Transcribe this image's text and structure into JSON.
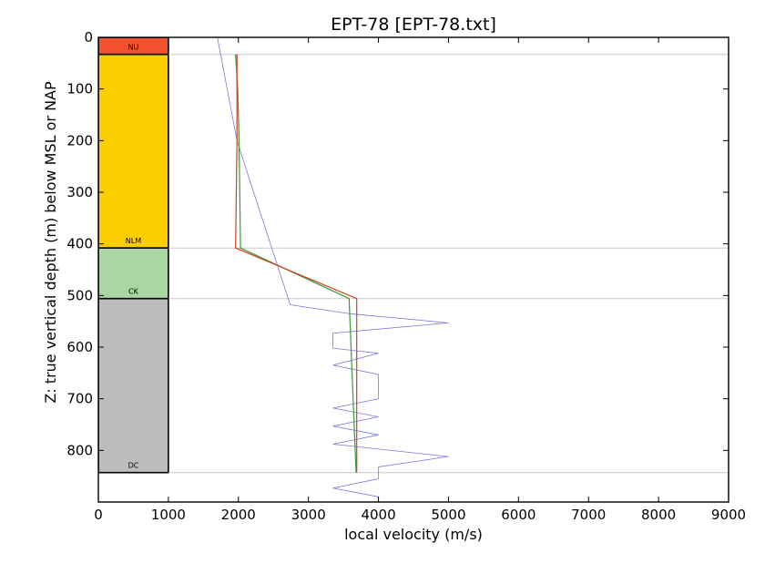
{
  "chart_data": {
    "type": "line",
    "title": "EPT-78 [EPT-78.txt]",
    "xlabel": "local velocity (m/s)",
    "ylabel": "Z: true vertical depth (m) below MSL or NAP",
    "xlim": [
      0,
      9000
    ],
    "ylim": [
      900,
      0
    ],
    "y_inverted": true,
    "grid": false,
    "xticks": [
      0,
      1000,
      2000,
      3000,
      4000,
      5000,
      6000,
      7000,
      8000,
      9000
    ],
    "yticks": [
      0,
      100,
      200,
      300,
      400,
      500,
      600,
      700,
      800
    ],
    "formation_column": {
      "x_range": [
        0,
        1000
      ],
      "units": [
        {
          "label": "NU",
          "top": 0,
          "base": 33,
          "color": "#f2522d"
        },
        {
          "label": "NLM",
          "top": 33,
          "base": 408,
          "color": "#fcce00"
        },
        {
          "label": "CK",
          "top": 408,
          "base": 506,
          "color": "#a8d7a2"
        },
        {
          "label": "DC",
          "top": 506,
          "base": 843,
          "color": "#bcbcbc"
        }
      ],
      "boundaries": [
        33,
        408,
        506,
        843
      ],
      "boundary_line_color": "#c8c8c8"
    },
    "series": [
      {
        "color": "#7a7ae0",
        "points": [
          [
            1700,
            0
          ],
          [
            1980,
            200
          ],
          [
            2050,
            230
          ],
          [
            2740,
            518
          ],
          [
            3580,
            535
          ],
          [
            5000,
            553
          ],
          [
            3350,
            573
          ],
          [
            3350,
            602
          ],
          [
            4000,
            612
          ],
          [
            3350,
            635
          ],
          [
            4000,
            653
          ],
          [
            4000,
            700
          ],
          [
            3350,
            718
          ],
          [
            4000,
            735
          ],
          [
            3350,
            753
          ],
          [
            4000,
            770
          ],
          [
            3350,
            788
          ],
          [
            5000,
            812
          ],
          [
            4000,
            832
          ],
          [
            4000,
            855
          ],
          [
            3350,
            873
          ],
          [
            4000,
            890
          ]
        ]
      },
      {
        "color": "#3a9a3a",
        "points": [
          [
            1960,
            33
          ],
          [
            1990,
            100
          ],
          [
            2010,
            200
          ],
          [
            2030,
            408
          ],
          [
            3580,
            506
          ],
          [
            3680,
            843
          ]
        ]
      },
      {
        "color": "#d24020",
        "points": [
          [
            1980,
            33
          ],
          [
            1980,
            100
          ],
          [
            1980,
            200
          ],
          [
            1960,
            408
          ],
          [
            3690,
            506
          ],
          [
            3690,
            843
          ]
        ]
      }
    ]
  }
}
